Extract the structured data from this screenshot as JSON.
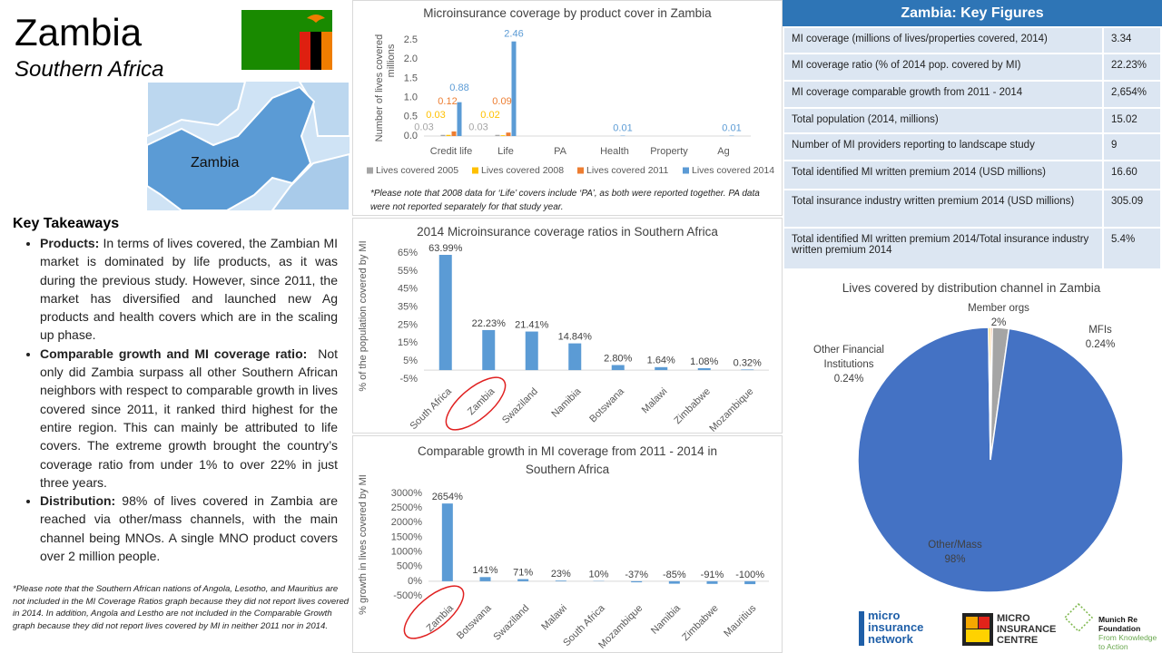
{
  "header": {
    "title": "Zambia",
    "subtitle": "Southern Africa",
    "map_label": "Zambia"
  },
  "takeaways": {
    "heading": "Key Takeaways",
    "items": [
      {
        "lead": "Products:",
        "text": "In terms of lives covered, the Zambian MI market is dominated by life products, as it was during the previous study. However, since 2011, the market has diversified and launched new Ag products and health covers which are in the scaling up phase."
      },
      {
        "lead": "Comparable growth and MI coverage ratio:",
        "text": "Not only did Zambia surpass all other Southern African neighbors with respect to comparable growth in lives covered since 2011, it ranked third highest for the entire region. This can mainly be attributed to life covers. The extreme growth brought the country’s coverage ratio from under 1% to over 22% in just three years."
      },
      {
        "lead": "Distribution:",
        "text": "98% of lives covered in Zambia are reached via other/mass channels, with the main channel being MNOs. A single MNO product covers over 2 million people."
      }
    ],
    "note": "*Please note that the Southern African nations of Angola, Lesotho, and Mauritius are not included in the MI Coverage Ratios graph because they did not report lives covered in 2014. In addition, Angola and Lestho are not included in the Comparable Growth graph because they did not report lives covered by MI in neither 2011 nor in 2014."
  },
  "key_figures": {
    "title": "Zambia: Key Figures",
    "rows": [
      [
        "MI coverage (millions of lives/properties covered, 2014)",
        "3.34"
      ],
      [
        "MI coverage ratio (% of 2014 pop. covered by MI)",
        "22.23%"
      ],
      [
        "MI coverage comparable growth from 2011 - 2014",
        "2,654%"
      ],
      [
        "Total population (2014, millions)",
        "15.02"
      ],
      [
        "Number of MI providers reporting to landscape study",
        "9"
      ],
      [
        "Total identified MI written premium 2014 (USD millions)",
        "16.60"
      ],
      [
        "Total insurance industry written premium 2014 (USD millions)",
        "305.09"
      ],
      [
        "Total identified MI written premium 2014/Total insurance industry written premium 2014",
        "5.4%"
      ]
    ]
  },
  "chart_data": [
    {
      "type": "bar",
      "title": "Microinsurance coverage by product cover in Zambia",
      "y_label": "Number of lives covered",
      "y_unit": "millions",
      "categories": [
        "Credit life",
        "Life",
        "PA",
        "Health",
        "Property",
        "Ag"
      ],
      "series": [
        {
          "name": "Lives covered 2005",
          "color": "#a5a5a5",
          "values": [
            0.03,
            0.03,
            null,
            null,
            null,
            null
          ]
        },
        {
          "name": "Lives covered 2008",
          "color": "#ffc000",
          "values": [
            0.03,
            0.02,
            null,
            null,
            null,
            null
          ]
        },
        {
          "name": "Lives covered 2011",
          "color": "#ed7d31",
          "values": [
            0.12,
            0.09,
            null,
            null,
            null,
            null
          ]
        },
        {
          "name": "Lives covered 2014",
          "color": "#5b9bd5",
          "values": [
            0.88,
            2.46,
            null,
            0.01,
            null,
            0.01
          ]
        }
      ],
      "ylim": [
        0,
        2.5
      ],
      "yticks": [
        {
          "value": 0,
          "label": "0.0"
        },
        0.5,
        {
          "value": 1,
          "label": "1.0"
        },
        1.5,
        {
          "value": 2,
          "label": "2.0"
        },
        2.5
      ],
      "grid": false,
      "legend": "bottom",
      "note": "*Please note that 2008 data for ‘Life’ covers include ‘PA’, as both were reported together. PA data were not reported separately for that study year."
    },
    {
      "type": "bar",
      "title": "2014 Microinsurance coverage ratios in Southern  Africa",
      "y_label": "% of the population covered by MI",
      "categories": [
        "South Africa",
        "Zambia",
        "Swaziland",
        "Namibia",
        "Botswana",
        "Malawi",
        "Zimbabwe",
        "Mozambique"
      ],
      "values": [
        63.99,
        22.23,
        21.41,
        14.84,
        2.8,
        1.64,
        1.08,
        0.32
      ],
      "value_labels": [
        "63.99%",
        "22.23%",
        "21.41%",
        "14.84%",
        "2.80%",
        "1.64%",
        "1.08%",
        "0.32%"
      ],
      "color": "#5b9bd5",
      "ylim": [
        -5,
        65
      ],
      "yticks": [
        {
          "value": -5,
          "label": "-5%"
        },
        {
          "value": 5,
          "label": "5%"
        },
        {
          "value": 15,
          "label": "15%"
        },
        {
          "value": 25,
          "label": "25%"
        },
        {
          "value": 35,
          "label": "35%"
        },
        {
          "value": 45,
          "label": "45%"
        },
        {
          "value": 55,
          "label": "55%"
        },
        {
          "value": 65,
          "label": "65%"
        }
      ],
      "grid": false
    },
    {
      "type": "bar",
      "title": "Comparable growth in MI coverage from 2011 - 2014 in Southern  Africa",
      "y_label": "% growth in lives covered by MI",
      "categories": [
        "Zambia",
        "Botswana",
        "Swaziland",
        "Malawi",
        "South Africa",
        "Mozambique",
        "Namibia",
        "Zimbabwe",
        "Mauritius"
      ],
      "values": [
        2654,
        141,
        71,
        23,
        10,
        -37,
        -85,
        -91,
        -100
      ],
      "value_labels": [
        "2654%",
        "141%",
        "71%",
        "23%",
        "10%",
        "-37%",
        "-85%",
        "-91%",
        "-100%"
      ],
      "color": "#5b9bd5",
      "ylim": [
        -500,
        3000
      ],
      "yticks": [
        {
          "value": -500,
          "label": "-500%"
        },
        {
          "value": 0,
          "label": "0%"
        },
        {
          "value": 500,
          "label": "500%"
        },
        {
          "value": 1000,
          "label": "1000%"
        },
        {
          "value": 1500,
          "label": "1500%"
        },
        {
          "value": 2000,
          "label": "2000%"
        },
        {
          "value": 2500,
          "label": "2500%"
        },
        {
          "value": 3000,
          "label": "3000%"
        }
      ],
      "grid": false
    },
    {
      "type": "pie",
      "title": "Lives covered by distribution channel in Zambia",
      "labels": [
        "MFIs",
        "Member orgs",
        "Other/Mass",
        "Other Financial Institutions"
      ],
      "values": [
        0.24,
        2,
        98,
        0.24
      ],
      "value_labels": [
        "0.24%",
        "2%",
        "98%",
        "0.24%"
      ],
      "colors": [
        "#ed7d31",
        "#a5a5a5",
        "#4472c4",
        "#ffc000"
      ]
    }
  ],
  "logos": {
    "network": "micro insurance network",
    "centre": "MICRO INSURANCE CENTRE",
    "foundation": "Munich Re Foundation",
    "foundation_tagline": "From Knowledge to Action"
  }
}
